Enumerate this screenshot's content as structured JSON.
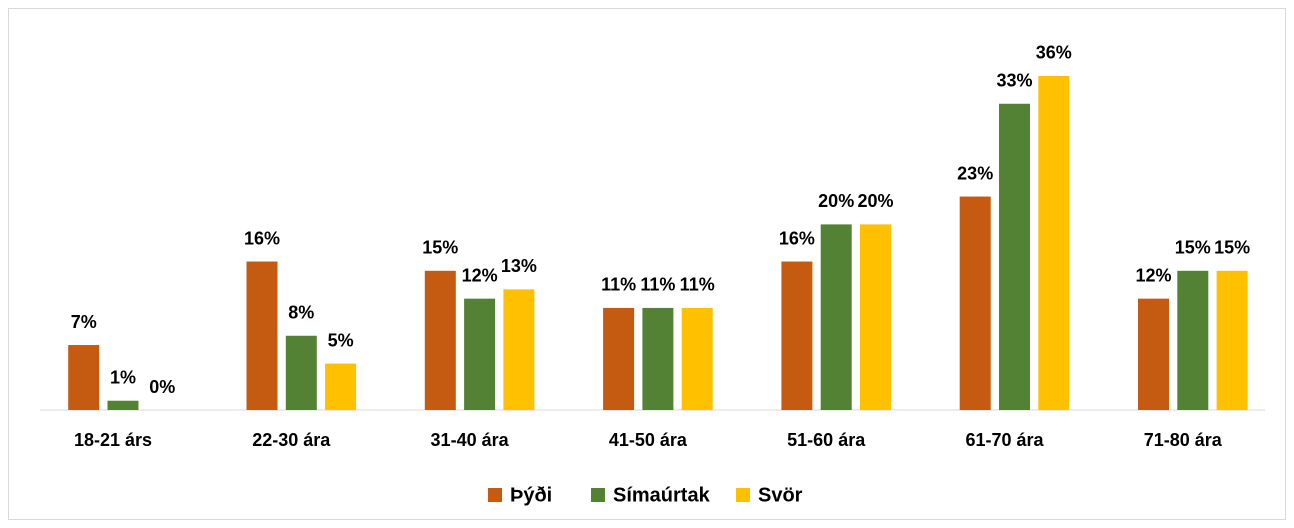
{
  "chart_data": {
    "type": "bar",
    "categories": [
      "18-21 árs",
      "22-30 ára",
      "31-40 ára",
      "41-50 ára",
      "51-60 ára",
      "61-70 ára",
      "71-80 ára"
    ],
    "series": [
      {
        "name": "Þýði",
        "color": "#c55a11",
        "values": [
          7,
          16,
          15,
          11,
          16,
          23,
          12
        ],
        "value_labels": [
          "7%",
          "16%",
          "15%",
          "11%",
          "16%",
          "23%",
          "12%"
        ]
      },
      {
        "name": "Símaúrtak",
        "color": "#548235",
        "values": [
          1,
          8,
          12,
          11,
          20,
          33,
          15
        ],
        "value_labels": [
          "1%",
          "8%",
          "12%",
          "11%",
          "20%",
          "33%",
          "15%"
        ]
      },
      {
        "name": "Svör",
        "color": "#ffc000",
        "values": [
          0,
          5,
          13,
          11,
          20,
          36,
          15
        ],
        "value_labels": [
          "0%",
          "5%",
          "13%",
          "11%",
          "20%",
          "36%",
          "15%"
        ]
      }
    ],
    "legend": "bottom"
  }
}
